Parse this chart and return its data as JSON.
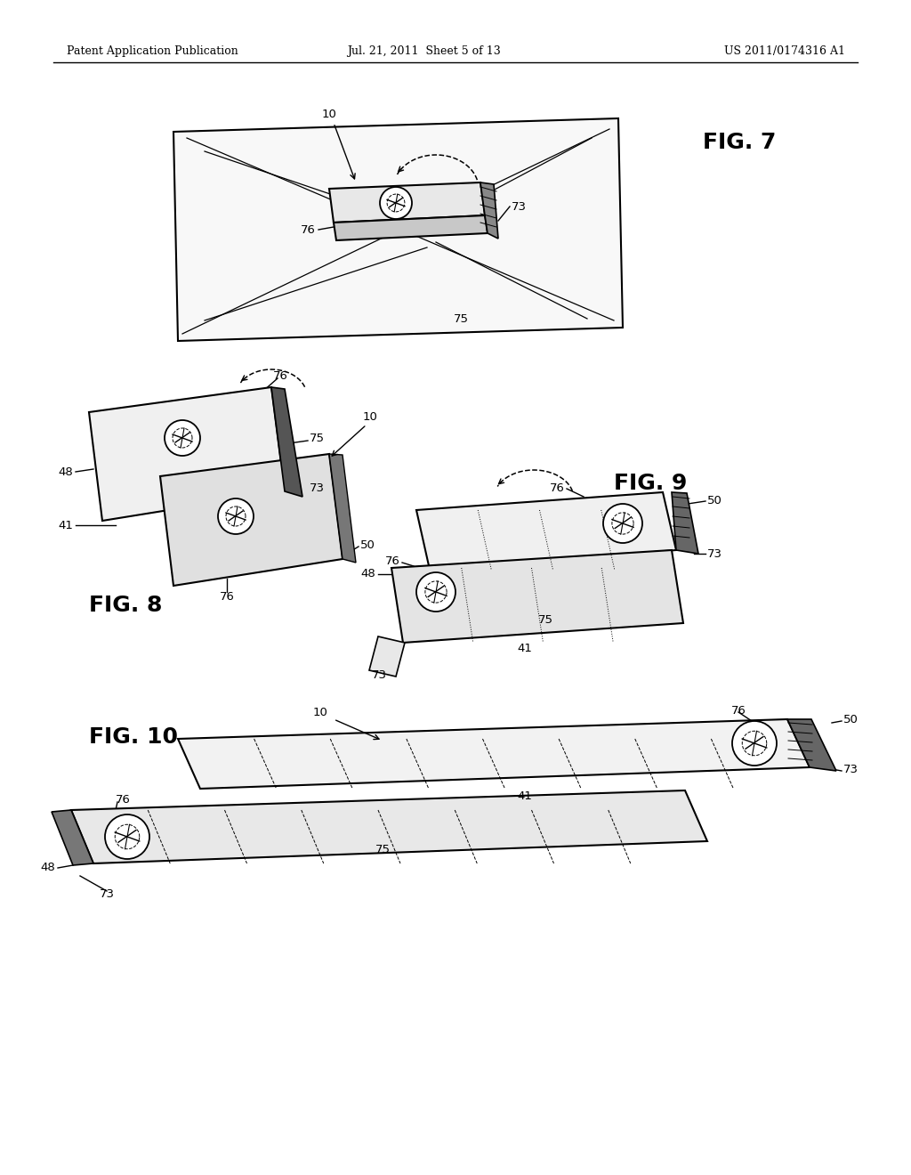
{
  "background_color": "#ffffff",
  "header_left": "Patent Application Publication",
  "header_center": "Jul. 21, 2011  Sheet 5 of 13",
  "header_right": "US 2011/0174316 A1",
  "fig7_label": "FIG. 7",
  "fig8_label": "FIG. 8",
  "fig9_label": "FIG. 9",
  "fig10_label": "FIG. 10",
  "lc": "#000000"
}
